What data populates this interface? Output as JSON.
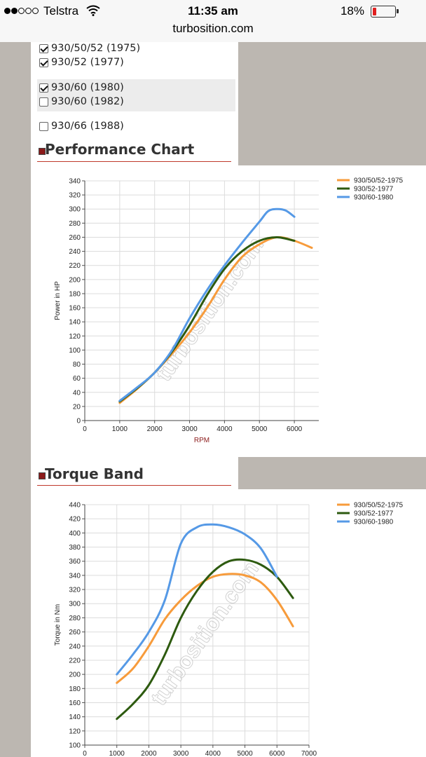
{
  "status_bar": {
    "carrier": "Telstra",
    "time": "11:35 am",
    "battery": "18%",
    "battery_level": 0.18,
    "url": "turbosition.com"
  },
  "options": [
    {
      "label": "930/50/52 (1975)",
      "checked": true
    },
    {
      "label": "930/52 (1977)",
      "checked": true
    },
    {
      "label": "930/60 (1980)",
      "checked": true
    },
    {
      "label": "930/60 (1982)",
      "checked": false
    },
    {
      "label": "930/66 (1988)",
      "checked": false
    }
  ],
  "sections": {
    "performance_title": "Performance Chart",
    "torque_title": "Torque Band"
  },
  "watermark": "turbosition.com",
  "chart_data": [
    {
      "type": "line",
      "title": "",
      "xlabel": "RPM",
      "ylabel": "Power in HP",
      "xlim": [
        0,
        6700
      ],
      "ylim": [
        0,
        340
      ],
      "xticks": [
        0,
        1000,
        2000,
        3000,
        4000,
        5000,
        6000
      ],
      "yticks": [
        0,
        20,
        40,
        60,
        80,
        100,
        120,
        140,
        160,
        180,
        200,
        220,
        240,
        260,
        280,
        300,
        320,
        340
      ],
      "grid": true,
      "legend": "top-right",
      "series": [
        {
          "name": "930/50/52-1975",
          "color": "#f79b3b",
          "x": [
            1000,
            1500,
            2000,
            2500,
            3000,
            3500,
            4000,
            4500,
            5000,
            5500,
            6000,
            6500
          ],
          "y": [
            25,
            45,
            68,
            95,
            125,
            160,
            200,
            232,
            250,
            260,
            255,
            245
          ]
        },
        {
          "name": "930/52-1977",
          "color": "#2d5a0f",
          "x": [
            1000,
            1500,
            2000,
            2500,
            3000,
            3500,
            4000,
            4500,
            5000,
            5500,
            6000
          ],
          "y": [
            27,
            46,
            68,
            98,
            135,
            178,
            215,
            240,
            255,
            260,
            255
          ]
        },
        {
          "name": "930/60-1980",
          "color": "#5599e6",
          "x": [
            1000,
            1500,
            2000,
            2500,
            3000,
            3500,
            4000,
            4500,
            5000,
            5250,
            5500,
            5750,
            6000
          ],
          "y": [
            28,
            47,
            68,
            100,
            145,
            185,
            220,
            252,
            282,
            297,
            300,
            298,
            289
          ]
        }
      ]
    },
    {
      "type": "line",
      "title": "",
      "xlabel": "",
      "ylabel": "Torque in Nm",
      "xlim": [
        0,
        7000
      ],
      "ylim": [
        100,
        440
      ],
      "xticks": [
        0,
        1000,
        2000,
        3000,
        4000,
        5000,
        6000,
        7000
      ],
      "yticks": [
        100,
        120,
        140,
        160,
        180,
        200,
        220,
        240,
        260,
        280,
        300,
        320,
        340,
        360,
        380,
        400,
        420,
        440
      ],
      "grid": true,
      "legend": "top-right",
      "series": [
        {
          "name": "930/50/52-1975",
          "color": "#f79b3b",
          "x": [
            1000,
            1500,
            2000,
            2500,
            3000,
            3500,
            4000,
            4500,
            5000,
            5500,
            6000,
            6500
          ],
          "y": [
            188,
            208,
            240,
            278,
            305,
            325,
            338,
            342,
            340,
            330,
            305,
            268
          ]
        },
        {
          "name": "930/52-1977",
          "color": "#2d5a0f",
          "x": [
            1000,
            1500,
            2000,
            2500,
            3000,
            3500,
            4000,
            4500,
            5000,
            5500,
            6000,
            6500
          ],
          "y": [
            137,
            158,
            185,
            228,
            280,
            318,
            345,
            360,
            362,
            355,
            338,
            308
          ]
        },
        {
          "name": "930/60-1980",
          "color": "#5599e6",
          "x": [
            1000,
            1500,
            2000,
            2500,
            3000,
            3500,
            4000,
            4500,
            5000,
            5500,
            6000
          ],
          "y": [
            200,
            228,
            260,
            305,
            385,
            408,
            412,
            408,
            398,
            378,
            338
          ]
        }
      ]
    }
  ]
}
